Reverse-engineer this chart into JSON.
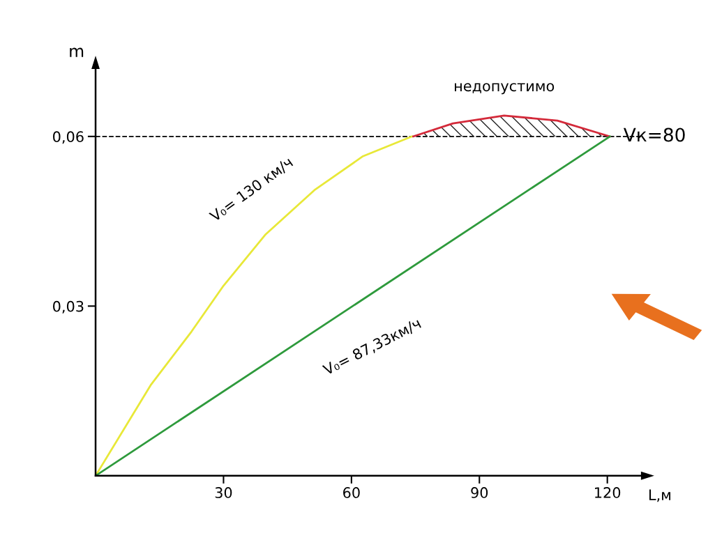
{
  "chart_data": {
    "type": "line",
    "xlabel": "L,м",
    "ylabel": "m",
    "series": [
      {
        "color": "#e8e838",
        "x": [
          0,
          12.9,
          22.5,
          30,
          39.9,
          51.3,
          62.7,
          74.2
        ],
        "values": [
          0,
          0.016,
          0.0255,
          0.0336,
          0.0427,
          0.0505,
          0.0565,
          0.06
        ]
      },
      {
        "type": "area",
        "color": "#d42a3a",
        "x": [
          74.5,
          83.8,
          95.8,
          108.3,
          120.6
        ],
        "values": [
          0.06,
          0.0623,
          0.0637,
          0.0628,
          0.06
        ]
      },
      {
        "color": "#2e9a3c",
        "x": [
          0,
          120.6
        ],
        "values": [
          0,
          0.06
        ]
      }
    ],
    "xlim": [
      0,
      128
    ],
    "ylim": [
      0,
      0.072
    ],
    "xticks": [
      30,
      60,
      90,
      120
    ],
    "yticks": [
      {
        "value": 0.03,
        "label": "0,03"
      },
      {
        "value": 0.06,
        "label": "0,06"
      }
    ],
    "ref_lines": [
      {
        "axis": "y",
        "value": 0.06,
        "color": "#000000",
        "line_style": "dashed"
      }
    ],
    "annotations": [
      {
        "text": "недопустимо",
        "x": 95.8,
        "y": 0.0637
      },
      {
        "text": "Vк=80",
        "x": 120.6,
        "y": 0.06
      },
      {
        "text": "V₀= 130 км/ч",
        "x": 39.9,
        "y": 0.0427
      },
      {
        "text": "V₀= 87,33км/ч",
        "x": 60,
        "y": 0.0298
      }
    ],
    "grid": false,
    "legend": false,
    "marker": "none",
    "line_style": "solid"
  }
}
